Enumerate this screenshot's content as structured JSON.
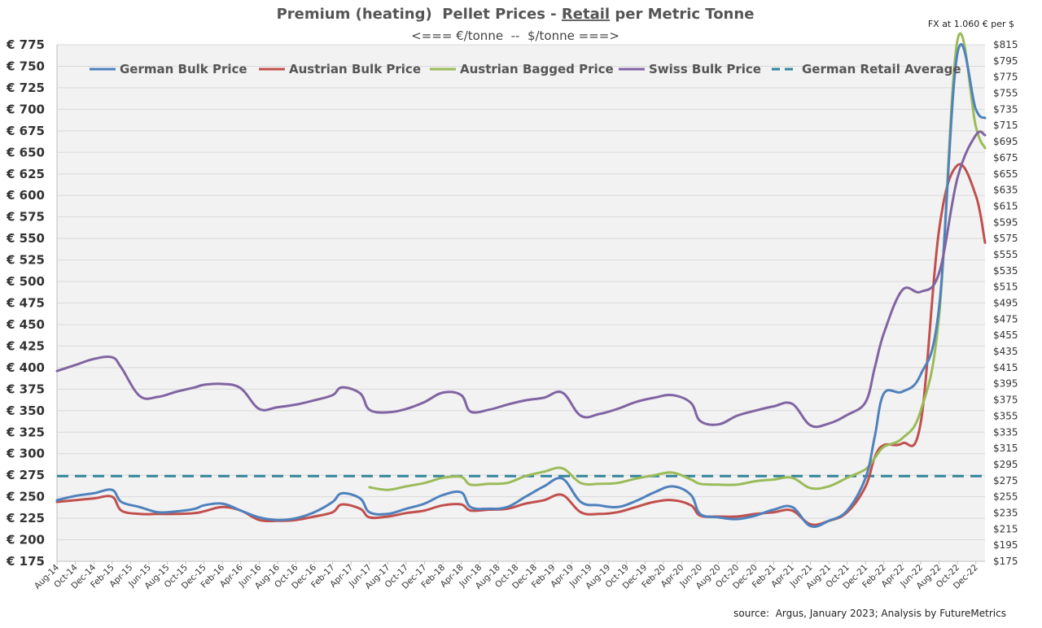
{
  "chart_data": {
    "type": "line",
    "title_parts": {
      "pre": "Premium (heating)  Pellet Prices - ",
      "underlined": "Retail",
      "post": " per Metric Tonne"
    },
    "subtitle": "<=== €/tonne  --  $/tonne ===>",
    "fx_note": "FX at 1.060 € per $",
    "source": "source:  Argus, January 2023; Analysis by FutureMetrics",
    "y_left": {
      "ylim": [
        175,
        775
      ],
      "ticks": [
        "€ 775",
        "€ 750",
        "€ 725",
        "€ 700",
        "€ 675",
        "€ 650",
        "€ 625",
        "€ 600",
        "€ 575",
        "€ 550",
        "€ 525",
        "€ 500",
        "€ 475",
        "€ 450",
        "€ 425",
        "€ 400",
        "€ 375",
        "€ 350",
        "€ 325",
        "€ 300",
        "€ 275",
        "€ 250",
        "€ 225",
        "€ 200",
        "€ 175"
      ]
    },
    "y_right": {
      "ylim": [
        175,
        815
      ],
      "ticks": [
        "$815",
        "$795",
        "$775",
        "$755",
        "$735",
        "$715",
        "$695",
        "$675",
        "$655",
        "$635",
        "$615",
        "$595",
        "$575",
        "$555",
        "$535",
        "$515",
        "$495",
        "$475",
        "$455",
        "$435",
        "$415",
        "$395",
        "$375",
        "$355",
        "$335",
        "$315",
        "$295",
        "$275",
        "$255",
        "$235",
        "$215",
        "$195",
        "$175"
      ]
    },
    "x_start": "2014-08",
    "x_end": "2023-01",
    "xticks": [
      "Aug-14",
      "Oct-14",
      "Dec-14",
      "Feb-15",
      "Apr-15",
      "Jun-15",
      "Aug-15",
      "Oct-15",
      "Dec-15",
      "Feb-16",
      "Apr-16",
      "Jun-16",
      "Aug-16",
      "Oct-16",
      "Dec-16",
      "Feb-17",
      "Apr-17",
      "Jun-17",
      "Aug-17",
      "Oct-17",
      "Dec-17",
      "Feb-18",
      "Apr-18",
      "Jun-18",
      "Aug-18",
      "Oct-18",
      "Dec-18",
      "Feb-19",
      "Apr-19",
      "Jun-19",
      "Aug-19",
      "Oct-19",
      "Dec-19",
      "Feb-20",
      "Apr-20",
      "Jun-20",
      "Aug-20",
      "Oct-20",
      "Dec-20",
      "Feb-21",
      "Apr-21",
      "Jun-21",
      "Aug-21",
      "Oct-21",
      "Dec-21",
      "Feb-22",
      "Apr-22",
      "Jun-22",
      "Aug-22",
      "Oct-22",
      "Dec-22"
    ],
    "grid": true,
    "legend_position": "top",
    "series": [
      {
        "name": "German Bulk Price",
        "color": "#4f81bd",
        "style": "solid",
        "values": [
          [
            "2014-08",
            246
          ],
          [
            "2014-10",
            251
          ],
          [
            "2014-12",
            254
          ],
          [
            "2015-02",
            258
          ],
          [
            "2015-03",
            244
          ],
          [
            "2015-05",
            238
          ],
          [
            "2015-07",
            232
          ],
          [
            "2015-09",
            233
          ],
          [
            "2015-11",
            236
          ],
          [
            "2015-12",
            240
          ],
          [
            "2016-02",
            242
          ],
          [
            "2016-04",
            234
          ],
          [
            "2016-06",
            226
          ],
          [
            "2016-08",
            223
          ],
          [
            "2016-10",
            225
          ],
          [
            "2016-12",
            232
          ],
          [
            "2017-02",
            244
          ],
          [
            "2017-03",
            254
          ],
          [
            "2017-05",
            248
          ],
          [
            "2017-06",
            232
          ],
          [
            "2017-08",
            230
          ],
          [
            "2017-10",
            236
          ],
          [
            "2017-12",
            242
          ],
          [
            "2018-02",
            252
          ],
          [
            "2018-04",
            255
          ],
          [
            "2018-05",
            238
          ],
          [
            "2018-07",
            236
          ],
          [
            "2018-09",
            238
          ],
          [
            "2018-11",
            250
          ],
          [
            "2019-01",
            262
          ],
          [
            "2019-03",
            271
          ],
          [
            "2019-05",
            244
          ],
          [
            "2019-07",
            240
          ],
          [
            "2019-09",
            238
          ],
          [
            "2019-11",
            245
          ],
          [
            "2020-01",
            255
          ],
          [
            "2020-03",
            262
          ],
          [
            "2020-05",
            252
          ],
          [
            "2020-06",
            230
          ],
          [
            "2020-08",
            226
          ],
          [
            "2020-10",
            224
          ],
          [
            "2020-12",
            228
          ],
          [
            "2021-02",
            235
          ],
          [
            "2021-04",
            238
          ],
          [
            "2021-06",
            216
          ],
          [
            "2021-08",
            222
          ],
          [
            "2021-10",
            234
          ],
          [
            "2021-12",
            272
          ],
          [
            "2022-01",
            320
          ],
          [
            "2022-02",
            370
          ],
          [
            "2022-04",
            372
          ],
          [
            "2022-06",
            392
          ],
          [
            "2022-08",
            470
          ],
          [
            "2022-10",
            765
          ],
          [
            "2022-12",
            700
          ],
          [
            "2023-01",
            690
          ]
        ]
      },
      {
        "name": "Austrian Bulk Price",
        "color": "#c0504d",
        "style": "solid",
        "values": [
          [
            "2014-08",
            244
          ],
          [
            "2014-10",
            246
          ],
          [
            "2014-12",
            248
          ],
          [
            "2015-02",
            250
          ],
          [
            "2015-03",
            234
          ],
          [
            "2015-05",
            230
          ],
          [
            "2015-07",
            230
          ],
          [
            "2015-09",
            230
          ],
          [
            "2015-11",
            231
          ],
          [
            "2015-12",
            233
          ],
          [
            "2016-02",
            238
          ],
          [
            "2016-04",
            234
          ],
          [
            "2016-06",
            223
          ],
          [
            "2016-08",
            222
          ],
          [
            "2016-10",
            223
          ],
          [
            "2016-12",
            227
          ],
          [
            "2017-02",
            232
          ],
          [
            "2017-03",
            241
          ],
          [
            "2017-05",
            236
          ],
          [
            "2017-06",
            226
          ],
          [
            "2017-08",
            227
          ],
          [
            "2017-10",
            231
          ],
          [
            "2017-12",
            234
          ],
          [
            "2018-02",
            240
          ],
          [
            "2018-04",
            241
          ],
          [
            "2018-05",
            234
          ],
          [
            "2018-07",
            235
          ],
          [
            "2018-09",
            236
          ],
          [
            "2018-11",
            242
          ],
          [
            "2019-01",
            246
          ],
          [
            "2019-03",
            252
          ],
          [
            "2019-05",
            232
          ],
          [
            "2019-07",
            230
          ],
          [
            "2019-09",
            232
          ],
          [
            "2019-11",
            238
          ],
          [
            "2020-01",
            244
          ],
          [
            "2020-03",
            246
          ],
          [
            "2020-05",
            240
          ],
          [
            "2020-06",
            228
          ],
          [
            "2020-08",
            227
          ],
          [
            "2020-10",
            227
          ],
          [
            "2020-12",
            230
          ],
          [
            "2021-02",
            232
          ],
          [
            "2021-04",
            234
          ],
          [
            "2021-06",
            218
          ],
          [
            "2021-08",
            222
          ],
          [
            "2021-10",
            232
          ],
          [
            "2021-12",
            262
          ],
          [
            "2022-01",
            296
          ],
          [
            "2022-02",
            310
          ],
          [
            "2022-04",
            312
          ],
          [
            "2022-06",
            336
          ],
          [
            "2022-08",
            560
          ],
          [
            "2022-10",
            635
          ],
          [
            "2022-12",
            600
          ],
          [
            "2023-01",
            545
          ]
        ]
      },
      {
        "name": "Austrian Bagged Price",
        "color": "#9bbb59",
        "style": "solid",
        "values": [
          [
            "2017-06",
            261
          ],
          [
            "2017-08",
            258
          ],
          [
            "2017-10",
            262
          ],
          [
            "2017-12",
            266
          ],
          [
            "2018-02",
            272
          ],
          [
            "2018-04",
            273
          ],
          [
            "2018-05",
            264
          ],
          [
            "2018-07",
            265
          ],
          [
            "2018-09",
            266
          ],
          [
            "2018-11",
            274
          ],
          [
            "2019-01",
            279
          ],
          [
            "2019-03",
            283
          ],
          [
            "2019-05",
            266
          ],
          [
            "2019-07",
            265
          ],
          [
            "2019-09",
            266
          ],
          [
            "2019-11",
            271
          ],
          [
            "2020-01",
            275
          ],
          [
            "2020-03",
            278
          ],
          [
            "2020-05",
            270
          ],
          [
            "2020-06",
            265
          ],
          [
            "2020-08",
            264
          ],
          [
            "2020-10",
            264
          ],
          [
            "2020-12",
            268
          ],
          [
            "2021-02",
            270
          ],
          [
            "2021-04",
            272
          ],
          [
            "2021-06",
            260
          ],
          [
            "2021-08",
            262
          ],
          [
            "2021-10",
            272
          ],
          [
            "2021-12",
            282
          ],
          [
            "2022-01",
            295
          ],
          [
            "2022-02",
            308
          ],
          [
            "2022-04",
            318
          ],
          [
            "2022-06",
            350
          ],
          [
            "2022-08",
            460
          ],
          [
            "2022-10",
            780
          ],
          [
            "2022-12",
            680
          ],
          [
            "2023-01",
            655
          ]
        ]
      },
      {
        "name": "Swiss Bulk Price",
        "color": "#8064a2",
        "style": "solid",
        "values": [
          [
            "2014-08",
            396
          ],
          [
            "2014-10",
            403
          ],
          [
            "2014-12",
            410
          ],
          [
            "2015-02",
            412
          ],
          [
            "2015-03",
            400
          ],
          [
            "2015-05",
            367
          ],
          [
            "2015-07",
            366
          ],
          [
            "2015-09",
            372
          ],
          [
            "2015-11",
            377
          ],
          [
            "2015-12",
            380
          ],
          [
            "2016-02",
            381
          ],
          [
            "2016-04",
            376
          ],
          [
            "2016-06",
            352
          ],
          [
            "2016-08",
            354
          ],
          [
            "2016-10",
            357
          ],
          [
            "2016-12",
            362
          ],
          [
            "2017-02",
            368
          ],
          [
            "2017-03",
            377
          ],
          [
            "2017-05",
            370
          ],
          [
            "2017-06",
            351
          ],
          [
            "2017-08",
            348
          ],
          [
            "2017-10",
            352
          ],
          [
            "2017-12",
            360
          ],
          [
            "2018-02",
            371
          ],
          [
            "2018-04",
            368
          ],
          [
            "2018-05",
            349
          ],
          [
            "2018-07",
            351
          ],
          [
            "2018-09",
            357
          ],
          [
            "2018-11",
            362
          ],
          [
            "2019-01",
            365
          ],
          [
            "2019-03",
            371
          ],
          [
            "2019-05",
            344
          ],
          [
            "2019-07",
            346
          ],
          [
            "2019-09",
            352
          ],
          [
            "2019-11",
            360
          ],
          [
            "2020-01",
            365
          ],
          [
            "2020-03",
            368
          ],
          [
            "2020-05",
            359
          ],
          [
            "2020-06",
            338
          ],
          [
            "2020-08",
            334
          ],
          [
            "2020-10",
            344
          ],
          [
            "2020-12",
            350
          ],
          [
            "2021-02",
            355
          ],
          [
            "2021-04",
            358
          ],
          [
            "2021-06",
            333
          ],
          [
            "2021-08",
            335
          ],
          [
            "2021-10",
            345
          ],
          [
            "2021-12",
            360
          ],
          [
            "2022-01",
            400
          ],
          [
            "2022-02",
            440
          ],
          [
            "2022-04",
            490
          ],
          [
            "2022-06",
            488
          ],
          [
            "2022-08",
            510
          ],
          [
            "2022-10",
            620
          ],
          [
            "2022-12",
            670
          ],
          [
            "2023-01",
            670
          ]
        ]
      },
      {
        "name": "German Retail Average",
        "color": "#31859c",
        "style": "dashed",
        "values": [
          [
            "2014-08",
            274
          ],
          [
            "2023-01",
            274
          ]
        ]
      }
    ]
  }
}
